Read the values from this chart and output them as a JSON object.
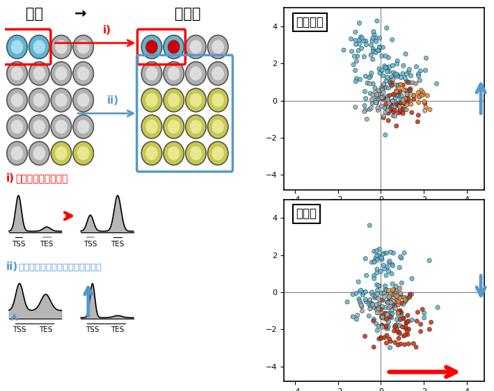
{
  "title_normal": "正常",
  "title_arrow": "→",
  "title_injury": "筋損傷",
  "label_i": "i)",
  "label_ii": "ii)",
  "label_i_text": "i)  遺伝子発現の活性化",
  "label_ii_text": "ii)  増殖や流入による集団サイズ増大",
  "label_immune": "免疫細胞",
  "label_muscle": "筋細胞",
  "tss_label": "TSS",
  "tes_label": "TES",
  "color_blue_cell_outer": "#5BB8D4",
  "color_blue_cell_inner": "#A8DCF0",
  "color_yellow_cell_outer": "#C8C850",
  "color_yellow_cell_inner": "#E8E890",
  "color_gray_cell_outer": "#B0B0B0",
  "color_gray_cell_inner": "#DCDCDC",
  "color_red": "#CC0000",
  "color_blue_arrow": "#5599CC",
  "scatter_teal": "#5BB8D4",
  "scatter_red": "#CC3311",
  "scatter_orange": "#EE8833",
  "scatter_gray": "#AAAAAA",
  "axis_ticks": [
    -4,
    -2,
    0,
    2,
    4
  ]
}
